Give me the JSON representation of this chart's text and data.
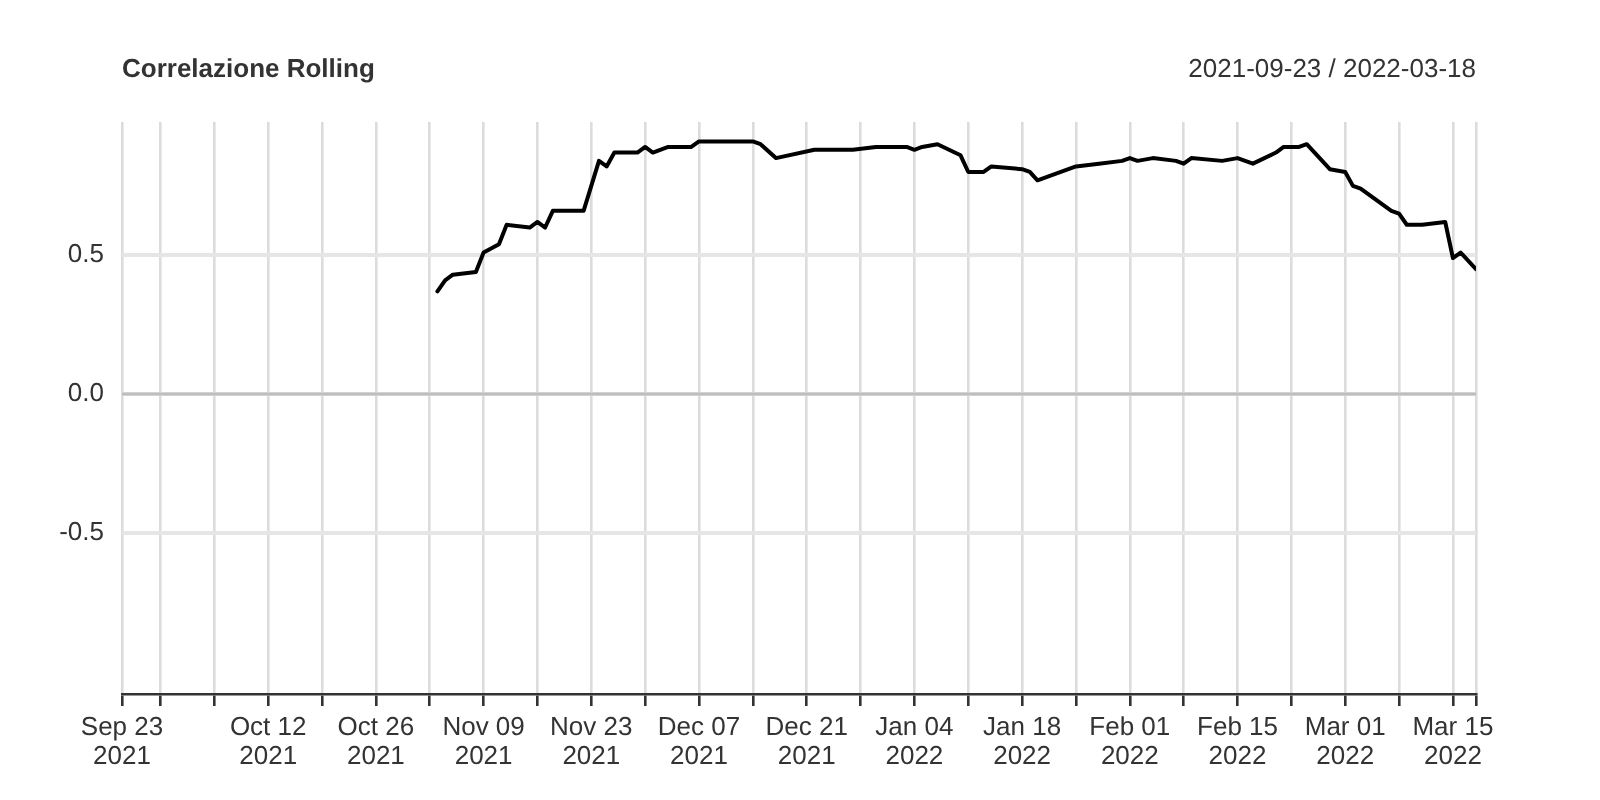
{
  "chart_data": {
    "type": "line",
    "title": "Correlazione Rolling",
    "subtitle": "2021-09-23 / 2022-03-18",
    "x": [
      "2021-11-03",
      "2021-11-04",
      "2021-11-05",
      "2021-11-08",
      "2021-11-09",
      "2021-11-11",
      "2021-11-12",
      "2021-11-15",
      "2021-11-16",
      "2021-11-17",
      "2021-11-18",
      "2021-11-22",
      "2021-11-24",
      "2021-11-25",
      "2021-11-26",
      "2021-11-29",
      "2021-11-30",
      "2021-12-01",
      "2021-12-03",
      "2021-12-06",
      "2021-12-07",
      "2021-12-08",
      "2021-12-14",
      "2021-12-15",
      "2021-12-17",
      "2021-12-22",
      "2021-12-27",
      "2021-12-30",
      "2022-01-03",
      "2022-01-04",
      "2022-01-05",
      "2022-01-07",
      "2022-01-10",
      "2022-01-11",
      "2022-01-13",
      "2022-01-14",
      "2022-01-18",
      "2022-01-19",
      "2022-01-20",
      "2022-01-25",
      "2022-01-28",
      "2022-01-31",
      "2022-02-01",
      "2022-02-02",
      "2022-02-04",
      "2022-02-07",
      "2022-02-08",
      "2022-02-09",
      "2022-02-13",
      "2022-02-15",
      "2022-02-17",
      "2022-02-20",
      "2022-02-21",
      "2022-02-23",
      "2022-02-24",
      "2022-02-27",
      "2022-03-01",
      "2022-03-02",
      "2022-03-03",
      "2022-03-07",
      "2022-03-08",
      "2022-03-09",
      "2022-03-10",
      "2022-03-11",
      "2022-03-14",
      "2022-03-15",
      "2022-03-16",
      "2022-03-18"
    ],
    "series": [
      {
        "color": "#000000",
        "values": [
          0.37,
          0.41,
          0.43,
          0.44,
          0.51,
          0.54,
          0.61,
          0.6,
          0.62,
          0.6,
          0.66,
          0.66,
          0.84,
          0.82,
          0.87,
          0.87,
          0.89,
          0.87,
          0.89,
          0.89,
          0.91,
          0.91,
          0.91,
          0.9,
          0.85,
          0.88,
          0.88,
          0.89,
          0.89,
          0.88,
          0.89,
          0.9,
          0.86,
          0.8,
          0.8,
          0.82,
          0.81,
          0.8,
          0.77,
          0.82,
          0.83,
          0.84,
          0.85,
          0.84,
          0.85,
          0.84,
          0.83,
          0.85,
          0.84,
          0.85,
          0.83,
          0.87,
          0.89,
          0.89,
          0.9,
          0.81,
          0.8,
          0.75,
          0.74,
          0.66,
          0.65,
          0.61,
          0.61,
          0.61,
          0.62,
          0.49,
          0.51,
          0.45
        ]
      }
    ],
    "xlim": [
      "2021-09-23",
      "2022-03-18"
    ],
    "xticks": [
      {
        "value": "2021-09-23",
        "label": "Sep 23\n2021"
      },
      {
        "value": "2021-09-28",
        "label": null
      },
      {
        "value": "2021-10-05",
        "label": null
      },
      {
        "value": "2021-10-12",
        "label": "Oct 12\n2021"
      },
      {
        "value": "2021-10-19",
        "label": null
      },
      {
        "value": "2021-10-26",
        "label": "Oct 26\n2021"
      },
      {
        "value": "2021-11-02",
        "label": null
      },
      {
        "value": "2021-11-09",
        "label": "Nov 09\n2021"
      },
      {
        "value": "2021-11-16",
        "label": null
      },
      {
        "value": "2021-11-23",
        "label": "Nov 23\n2021"
      },
      {
        "value": "2021-11-30",
        "label": null
      },
      {
        "value": "2021-12-07",
        "label": "Dec 07\n2021"
      },
      {
        "value": "2021-12-14",
        "label": null
      },
      {
        "value": "2021-12-21",
        "label": "Dec 21\n2021"
      },
      {
        "value": "2021-12-28",
        "label": null
      },
      {
        "value": "2022-01-04",
        "label": "Jan 04\n2022"
      },
      {
        "value": "2022-01-11",
        "label": null
      },
      {
        "value": "2022-01-18",
        "label": "Jan 18\n2022"
      },
      {
        "value": "2022-01-25",
        "label": null
      },
      {
        "value": "2022-02-01",
        "label": "Feb 01\n2022"
      },
      {
        "value": "2022-02-08",
        "label": null
      },
      {
        "value": "2022-02-15",
        "label": "Feb 15\n2022"
      },
      {
        "value": "2022-02-22",
        "label": null
      },
      {
        "value": "2022-03-01",
        "label": "Mar 01\n2022"
      },
      {
        "value": "2022-03-08",
        "label": null
      },
      {
        "value": "2022-03-15",
        "label": "Mar 15\n2022"
      },
      {
        "value": "2022-03-18",
        "label": null
      }
    ],
    "ylim": [
      -1.08,
      0.98
    ],
    "yticks": [
      -0.5,
      {
        "value": 0,
        "label": "0.0"
      },
      0.5
    ],
    "ref_lines": [
      {
        "axis": "y",
        "value": 0,
        "color": "#bebebe"
      }
    ],
    "grid": true,
    "legend": false
  }
}
